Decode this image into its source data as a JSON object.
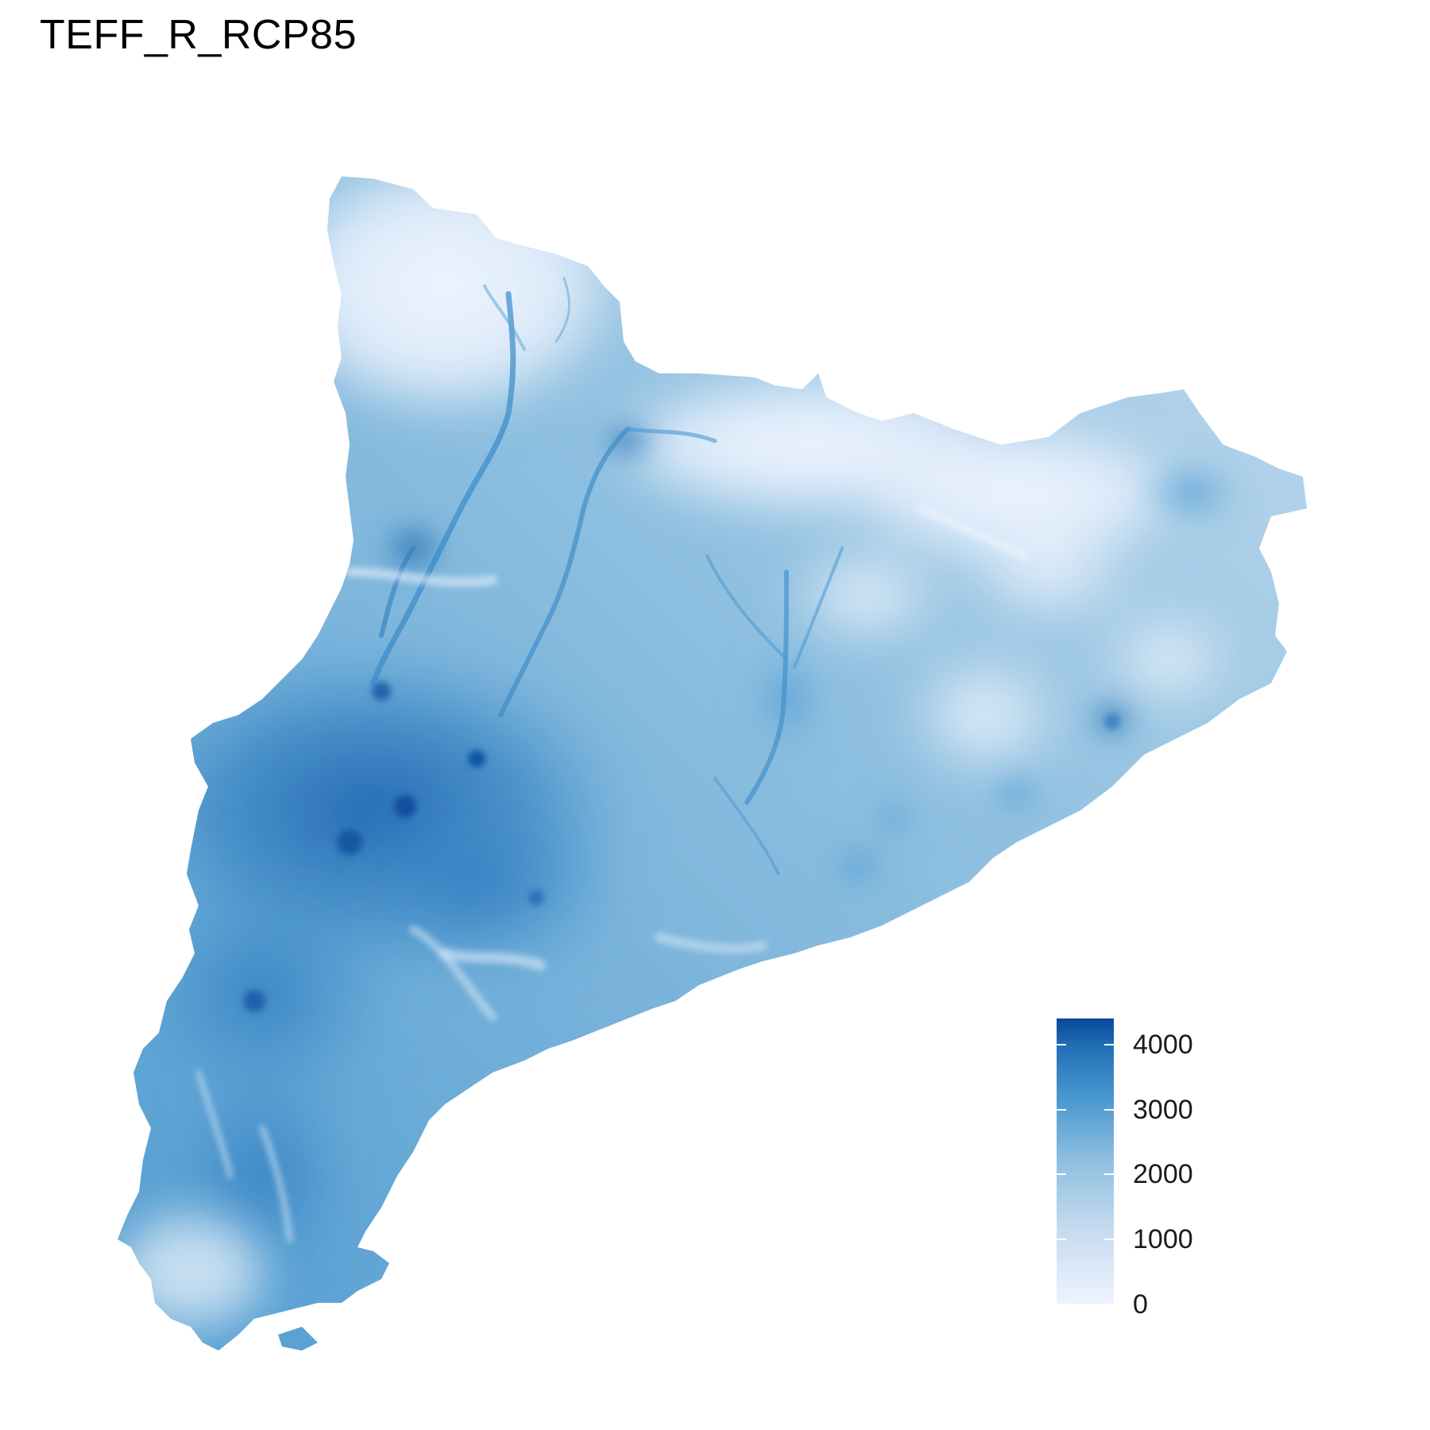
{
  "title": "TEFF_R_RCP85",
  "colors": {
    "low": "#eef4ff",
    "mid": "#6aaed6",
    "high": "#08479a"
  },
  "legend": {
    "min": 0,
    "max": 4400,
    "ticks": [
      {
        "value": 4000,
        "label": "4000"
      },
      {
        "value": 3000,
        "label": "3000"
      },
      {
        "value": 2000,
        "label": "2000"
      },
      {
        "value": 1000,
        "label": "1000"
      },
      {
        "value": 0,
        "label": "0"
      }
    ]
  }
}
